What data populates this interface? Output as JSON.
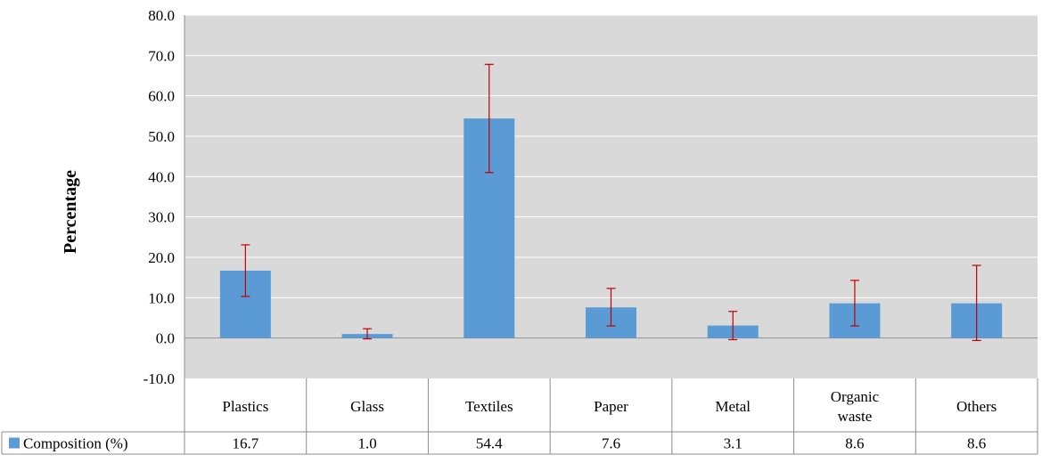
{
  "chart_data": {
    "type": "bar",
    "categories": [
      "Plastics",
      "Glass",
      "Textiles",
      "Paper",
      "Metal",
      "Organic waste",
      "Others"
    ],
    "category_lines": [
      [
        "Plastics"
      ],
      [
        "Glass"
      ],
      [
        "Textiles"
      ],
      [
        "Paper"
      ],
      [
        "Metal"
      ],
      [
        "Organic",
        "waste"
      ],
      [
        "Others"
      ]
    ],
    "series": [
      {
        "name": "Composition (%)",
        "values": [
          16.7,
          1.0,
          54.4,
          7.6,
          3.1,
          8.6,
          8.6
        ],
        "value_labels": [
          "16.7",
          "1.0",
          "54.4",
          "7.6",
          "3.1",
          "8.6",
          "8.6"
        ],
        "error_low": [
          10.3,
          -0.2,
          41.0,
          3.0,
          -0.4,
          3.0,
          -0.6
        ],
        "error_high": [
          23.1,
          2.3,
          67.8,
          12.3,
          6.6,
          14.3,
          18.0
        ],
        "color": "#5b9bd5"
      }
    ],
    "error_bar_color": "#c00000",
    "ylabel": "Percentage",
    "xlabel": "",
    "ylim": [
      -10,
      80
    ],
    "yticks": [
      -10,
      0,
      10,
      20,
      30,
      40,
      50,
      60,
      70,
      80
    ],
    "ytick_labels": [
      "-10.0",
      "0.0",
      "10.0",
      "20.0",
      "30.0",
      "40.0",
      "50.0",
      "60.0",
      "70.0",
      "80.0"
    ],
    "grid": true,
    "plot_background": "#d9d9d9",
    "gridline_color": "#ffffff",
    "legend": "data table (left of row)"
  }
}
